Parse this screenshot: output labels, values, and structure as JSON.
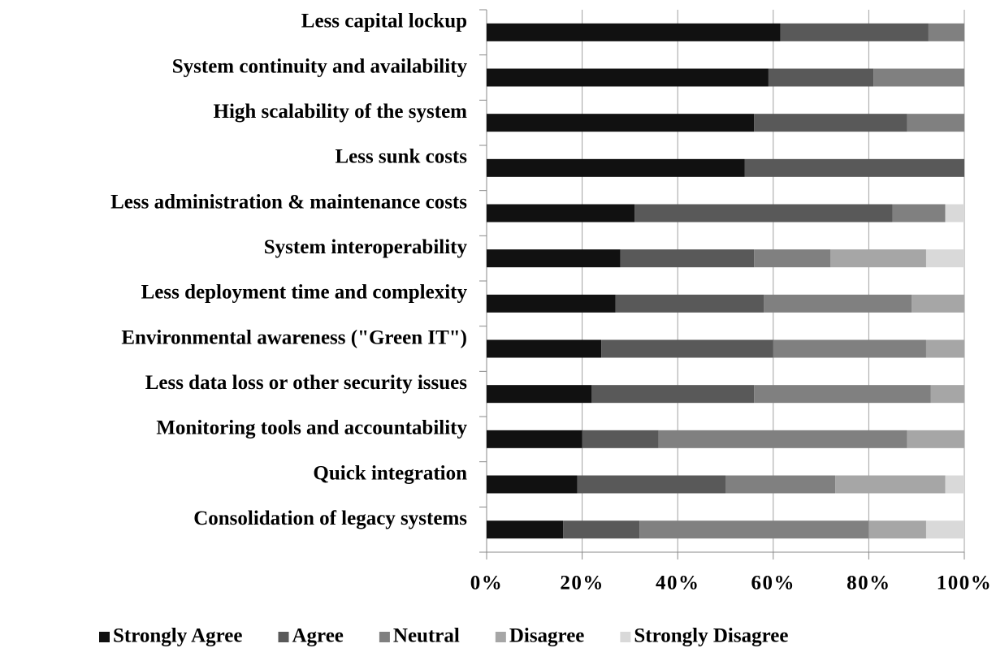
{
  "chart_data": {
    "type": "stacked_barh",
    "categories": [
      "Less capital lockup",
      "System continuity and availability",
      "High scalability of the system",
      "Less sunk costs",
      "Less administration & maintenance costs",
      "System interoperability",
      "Less deployment time and complexity",
      "Environmental awareness (\"Green IT\")",
      "Less data loss or other security issues",
      "Monitoring tools and accountability",
      "Quick integration",
      "Consolidation of legacy systems"
    ],
    "series": [
      {
        "name": "Strongly Agree",
        "color": "#111111",
        "values": [
          61.5,
          59,
          56,
          54,
          31,
          28,
          27,
          24,
          22,
          20,
          19,
          16
        ]
      },
      {
        "name": "Agree",
        "color": "#595959",
        "values": [
          31,
          22,
          32,
          46,
          54,
          28,
          31,
          36,
          34,
          16,
          31,
          16
        ]
      },
      {
        "name": "Neutral",
        "color": "#808080",
        "values": [
          7.5,
          19,
          12,
          0,
          11,
          16,
          31,
          32,
          37,
          52,
          23,
          48
        ]
      },
      {
        "name": "Disagree",
        "color": "#a6a6a6",
        "values": [
          0,
          0,
          0,
          0,
          0,
          20,
          11,
          8,
          7,
          12,
          23,
          12
        ]
      },
      {
        "name": "Strongly Disagree",
        "color": "#d9d9d9",
        "values": [
          0,
          0,
          0,
          0,
          4,
          8,
          0,
          0,
          0,
          0,
          4,
          8
        ]
      }
    ],
    "xlim": [
      0,
      100
    ],
    "xticks": [
      {
        "value": 0,
        "label": "0%"
      },
      {
        "value": 20,
        "label": "20%"
      },
      {
        "value": 40,
        "label": "40%"
      },
      {
        "value": 60,
        "label": "60%"
      },
      {
        "value": 80,
        "label": "80%"
      },
      {
        "value": 100,
        "label": "100%"
      }
    ],
    "grid": true,
    "legend": "bottom"
  }
}
